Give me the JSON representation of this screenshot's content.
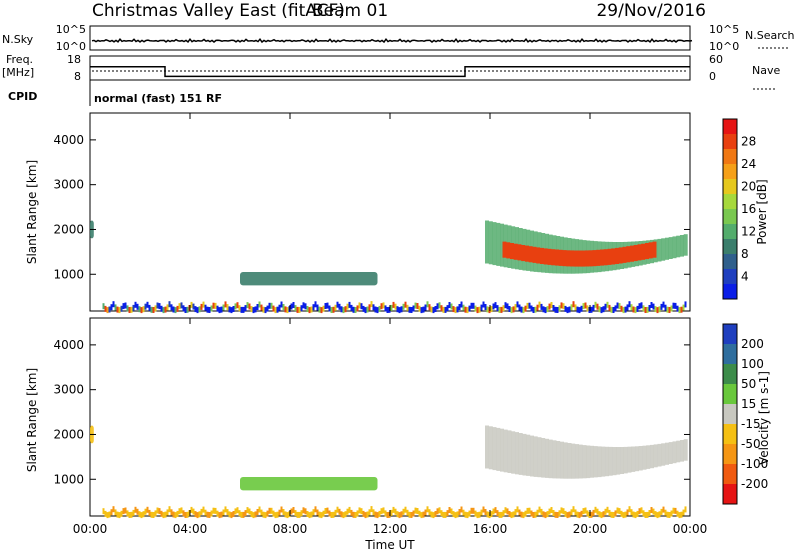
{
  "header": {
    "title": "Christmas Valley East (fitACF)",
    "beam": "Beam 01",
    "date": "29/Nov/2016"
  },
  "panels": {
    "nsky": {
      "label": "N.Sky",
      "right_label": "N.Search",
      "ticks": [
        "10^5",
        "10^0"
      ]
    },
    "freq": {
      "label_line1": "Freq.",
      "label_line2": "[MHz]",
      "right_label": "Nave",
      "left_ticks": [
        "18",
        "8"
      ],
      "right_ticks": [
        "60",
        "0"
      ]
    },
    "cpid": {
      "label": "CPID",
      "text": "normal (fast) 151 RF"
    }
  },
  "chart_data": [
    {
      "type": "heatmap",
      "name": "power",
      "ylabel": "Slant Range [km]",
      "ylim": [
        180,
        4600
      ],
      "yticks": [
        "1000",
        "2000",
        "3000",
        "4000"
      ],
      "colorbar": {
        "label": "Power [dB]",
        "ticks": [
          "4",
          "8",
          "12",
          "16",
          "20",
          "24",
          "28"
        ],
        "range": [
          0,
          32
        ],
        "colors": [
          "#0a1ee6",
          "#1f3fbf",
          "#2f5f8c",
          "#3b7e6c",
          "#53ac6c",
          "#7ac850",
          "#a6d83c",
          "#e6c81e",
          "#f5a019",
          "#f07814",
          "#e84010",
          "#e61414"
        ]
      },
      "regions": [
        {
          "name": "early echo",
          "x": [
            0.0,
            0.15
          ],
          "y": [
            1800,
            2200
          ],
          "value": 8
        },
        {
          "name": "midday echo",
          "x": [
            6.0,
            11.5
          ],
          "y": [
            750,
            1050
          ],
          "value": 10
        },
        {
          "name": "afternoon band outer",
          "x": [
            15.8,
            23.8
          ],
          "y": [
            1250,
            2350
          ],
          "value": 12
        },
        {
          "name": "afternoon band core",
          "x": [
            16.5,
            22.5
          ],
          "y": [
            1300,
            1800
          ],
          "value": 28
        },
        {
          "name": "near range",
          "x": [
            0.5,
            23.8
          ],
          "y": [
            200,
            400
          ],
          "value": 8
        }
      ]
    },
    {
      "type": "heatmap",
      "name": "velocity",
      "ylabel": "Slant Range [km]",
      "ylim": [
        180,
        4600
      ],
      "yticks": [
        "1000",
        "2000",
        "3000",
        "4000"
      ],
      "colorbar": {
        "label": "Velocity [m s-1]",
        "ticks": [
          "200",
          "100",
          "50",
          "15",
          "-15",
          "-50",
          "-100",
          "-200"
        ],
        "colors": [
          "#1f3fbf",
          "#2f6e9e",
          "#3c8c4a",
          "#69c83c",
          "#c8c8c0",
          "#f5c014",
          "#f59614",
          "#f05a10",
          "#e61414"
        ]
      },
      "regions": [
        {
          "name": "early echo",
          "x": [
            0.0,
            0.15
          ],
          "y": [
            1800,
            2200
          ],
          "value": -30
        },
        {
          "name": "midday echo",
          "x": [
            6.0,
            11.5
          ],
          "y": [
            750,
            1050
          ],
          "value": 30
        },
        {
          "name": "afternoon band",
          "x": [
            15.8,
            23.8
          ],
          "y": [
            1250,
            2350
          ],
          "value": 0
        },
        {
          "name": "near range",
          "x": [
            0.5,
            23.8
          ],
          "y": [
            200,
            400
          ],
          "value": -40
        }
      ]
    }
  ],
  "xaxis": {
    "label": "Time UT",
    "ticks": [
      "00:00",
      "04:00",
      "08:00",
      "12:00",
      "16:00",
      "20:00",
      "00:00"
    ],
    "range_hours": [
      0,
      24
    ]
  },
  "freq_trace": [
    {
      "t": 0,
      "v": 13.5
    },
    {
      "t": 3,
      "v": 13.5
    },
    {
      "t": 3,
      "v": 9.5
    },
    {
      "t": 15,
      "v": 9.5
    },
    {
      "t": 15,
      "v": 13.5
    },
    {
      "t": 24,
      "v": 13.5
    }
  ]
}
